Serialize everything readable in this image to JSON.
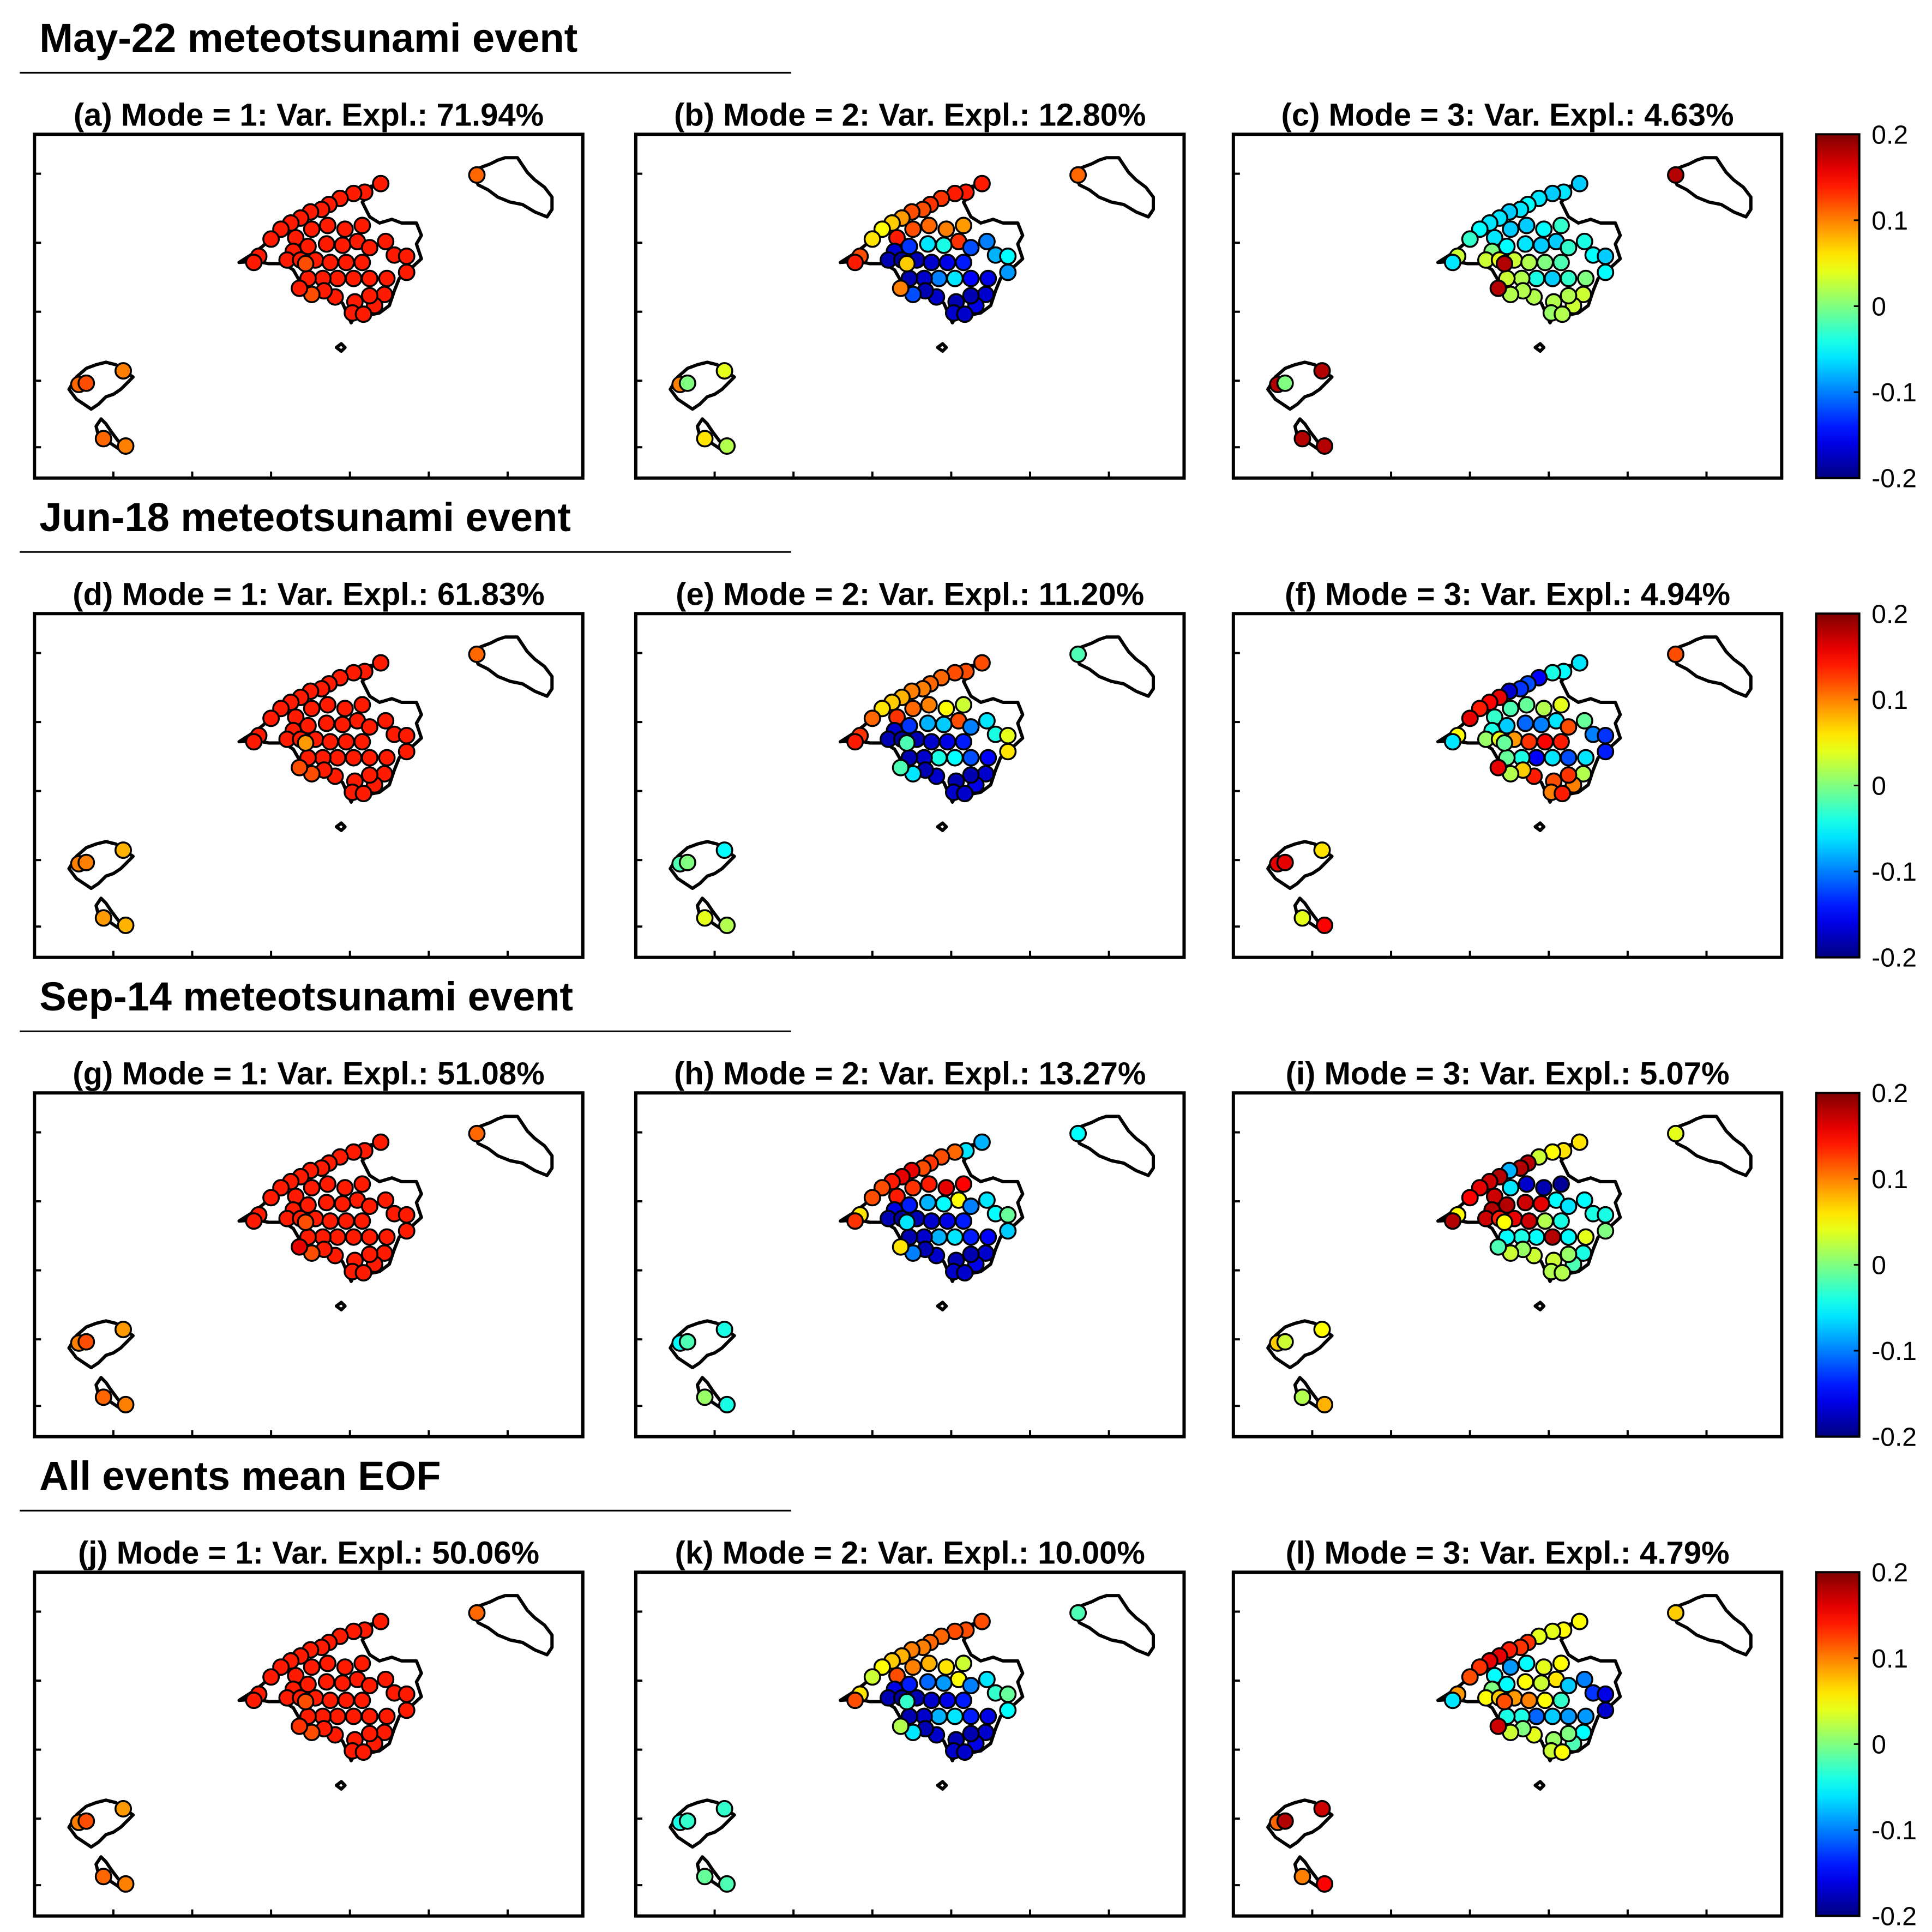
{
  "figure": {
    "colorbar": {
      "ticks": [
        "0.2",
        "0.1",
        "0",
        "-0.1",
        "-0.2"
      ],
      "range": [
        -0.2,
        0.2
      ],
      "colormap": "jet"
    },
    "groups": [
      {
        "title": "May-22 meteotsunami event",
        "panels": [
          {
            "title": "(a) Mode = 1: Var. Expl.: 71.94%"
          },
          {
            "title": "(b) Mode = 2: Var. Expl.: 12.80%"
          },
          {
            "title": "(c) Mode = 3: Var. Expl.: 4.63%"
          }
        ]
      },
      {
        "title": "Jun-18 meteotsunami event",
        "panels": [
          {
            "title": "(d) Mode = 1: Var. Expl.: 61.83%"
          },
          {
            "title": "(e) Mode = 2: Var. Expl.: 11.20%"
          },
          {
            "title": "(f) Mode = 3: Var. Expl.: 4.94%"
          }
        ]
      },
      {
        "title": "Sep-14 meteotsunami event",
        "panels": [
          {
            "title": "(g) Mode = 1: Var. Expl.: 51.08%"
          },
          {
            "title": "(h) Mode = 2: Var. Expl.: 13.27%"
          },
          {
            "title": "(i) Mode = 3: Var. Expl.: 5.07%"
          }
        ]
      },
      {
        "title": "All events mean EOF",
        "panels": [
          {
            "title": "(j) Mode = 1: Var. Expl.: 50.06%"
          },
          {
            "title": "(k) Mode = 2: Var. Expl.: 10.00%"
          },
          {
            "title": "(l) Mode = 3: Var. Expl.: 4.79%"
          }
        ]
      }
    ]
  },
  "chart_data": {
    "type": "scatter",
    "description_units": "station EOF amplitude",
    "colorbar_range": [
      -0.2,
      0.2
    ],
    "stations": [
      [
        0.6,
        0.15
      ],
      [
        1.0,
        0.12
      ],
      [
        1.4,
        0.2
      ],
      [
        2.0,
        0.25
      ],
      [
        2.8,
        0.15
      ],
      [
        2.3,
        0.55
      ],
      [
        0.8,
        0.65
      ],
      [
        0.3,
        1.0
      ],
      [
        0.6,
        1.3
      ],
      [
        0.35,
        1.65
      ],
      [
        0.1,
        1.95
      ],
      [
        0.0,
        2.3
      ],
      [
        1.3,
        0.9
      ],
      [
        1.8,
        1.25
      ],
      [
        2.4,
        1.0
      ],
      [
        3.0,
        1.1
      ],
      [
        3.5,
        1.45
      ],
      [
        4.0,
        1.65
      ],
      [
        3.4,
        0.7
      ],
      [
        4.9,
        0.7
      ],
      [
        5.1,
        0.95
      ],
      [
        5.8,
        1.55
      ],
      [
        5.6,
        2.1
      ],
      [
        5.3,
        2.75
      ],
      [
        4.8,
        3.25
      ],
      [
        4.2,
        3.2
      ],
      [
        3.7,
        3.05
      ],
      [
        3.2,
        2.95
      ],
      [
        2.6,
        2.7
      ],
      [
        2.1,
        2.3
      ],
      [
        1.6,
        2.05
      ],
      [
        1.4,
        1.55
      ],
      [
        2.6,
        1.9
      ],
      [
        3.3,
        2.25
      ],
      [
        4.4,
        2.6
      ],
      [
        5.3,
        1.75
      ],
      [
        4.3,
        1.3
      ],
      [
        3.9,
        2.05
      ],
      [
        6.3,
        2.3
      ],
      [
        6.6,
        2.8
      ],
      [
        6.2,
        3.15
      ],
      [
        5.9,
        3.5
      ],
      [
        6.1,
        4.0
      ],
      [
        6.5,
        4.6
      ],
      [
        5.7,
        4.4
      ],
      [
        5.2,
        5.0
      ],
      [
        5.5,
        5.5
      ],
      [
        6.6,
        5.0
      ],
      [
        0.0,
        0.0
      ],
      [
        3.0,
        1.2
      ],
      [
        3.0,
        0.3
      ],
      [
        0.5,
        0.8
      ],
      [
        0.0,
        1.1
      ],
      [
        1.7,
        0.0
      ],
      [
        0.0,
        1.4
      ],
      [
        0.0,
        0.0
      ],
      [
        1.4,
        0.6
      ]
    ],
    "panels": [
      {
        "id": "a",
        "values": [
          0.14,
          0.14,
          0.14,
          0.14,
          0.14,
          0.14,
          0.14,
          0.14,
          0.14,
          0.14,
          0.14,
          0.14,
          0.14,
          0.14,
          0.14,
          0.14,
          0.14,
          0.14,
          0.14,
          0.14,
          0.14,
          0.14,
          0.14,
          0.14,
          0.14,
          0.14,
          0.14,
          0.14,
          0.14,
          0.14,
          0.14,
          0.14,
          0.14,
          0.14,
          0.14,
          0.14,
          0.14,
          0.14,
          0.14,
          0.14,
          0.14,
          0.14,
          0.14,
          0.14,
          0.14,
          0.14,
          0.14,
          0.14,
          0.12,
          0.14,
          0.12,
          0.11,
          0.11,
          0.1,
          0.11,
          0.1,
          0.12
        ]
      },
      {
        "id": "b",
        "values": [
          0.14,
          0.14,
          0.14,
          0.13,
          0.13,
          0.12,
          0.12,
          0.09,
          0.07,
          0.05,
          0.06,
          0.12,
          0.14,
          0.14,
          0.12,
          0.11,
          0.1,
          0.09,
          0.13,
          -0.04,
          -0.06,
          -0.13,
          -0.17,
          -0.18,
          -0.19,
          -0.18,
          -0.17,
          -0.16,
          -0.14,
          -0.12,
          -0.1,
          -0.08,
          -0.05,
          -0.09,
          -0.16,
          -0.15,
          -0.06,
          -0.1,
          -0.17,
          -0.18,
          -0.17,
          -0.16,
          -0.18,
          -0.18,
          -0.17,
          -0.17,
          -0.17,
          -0.18,
          -0.12,
          0.1,
          0.07,
          0.11,
          0.1,
          0.04,
          0.06,
          0.02
        ]
      },
      {
        "id": "c",
        "values": [
          -0.07,
          -0.06,
          -0.07,
          -0.06,
          -0.05,
          -0.06,
          -0.07,
          -0.06,
          -0.06,
          -0.05,
          -0.03,
          0.03,
          -0.06,
          -0.06,
          -0.07,
          -0.07,
          -0.05,
          -0.03,
          -0.07,
          -0.07,
          -0.06,
          -0.05,
          0.0,
          0.03,
          0.04,
          0.03,
          0.02,
          0.0,
          -0.02,
          -0.03,
          -0.04,
          -0.05,
          -0.07,
          -0.05,
          0.0,
          -0.03,
          -0.07,
          -0.04,
          0.02,
          0.03,
          0.03,
          0.03,
          0.02,
          0.02,
          0.01,
          0.02,
          0.02,
          0.02,
          0.02,
          0.18,
          0.18,
          0.18,
          0.18,
          0.18,
          0.18,
          0.18
        ]
      },
      {
        "id": "d",
        "values": [
          0.14,
          0.14,
          0.14,
          0.14,
          0.14,
          0.14,
          0.14,
          0.14,
          0.14,
          0.14,
          0.14,
          0.14,
          0.14,
          0.14,
          0.14,
          0.14,
          0.14,
          0.14,
          0.14,
          0.14,
          0.14,
          0.14,
          0.14,
          0.14,
          0.14,
          0.14,
          0.14,
          0.14,
          0.14,
          0.14,
          0.14,
          0.14,
          0.14,
          0.14,
          0.14,
          0.14,
          0.14,
          0.14,
          0.14,
          0.14,
          0.14,
          0.14,
          0.14,
          0.14,
          0.14,
          0.14,
          0.14,
          0.14,
          0.12,
          0.12,
          0.09,
          0.11,
          0.1,
          0.08,
          0.09,
          0.08,
          0.1
        ]
      },
      {
        "id": "e",
        "values": [
          0.12,
          0.12,
          0.12,
          0.11,
          0.11,
          0.1,
          0.1,
          0.08,
          0.07,
          0.06,
          0.11,
          0.13,
          0.14,
          0.13,
          0.11,
          0.1,
          0.05,
          0.03,
          0.12,
          -0.07,
          -0.08,
          -0.13,
          -0.17,
          -0.18,
          -0.19,
          -0.18,
          -0.17,
          -0.16,
          -0.14,
          -0.1,
          -0.06,
          -0.04,
          0.04,
          0.06,
          -0.15,
          -0.12,
          -0.05,
          -0.04,
          -0.17,
          -0.18,
          -0.17,
          -0.16,
          -0.18,
          -0.18,
          -0.17,
          -0.17,
          -0.17,
          -0.18,
          -0.06,
          -0.02,
          -0.02,
          -0.02,
          -0.02,
          -0.05,
          0.04,
          0.02
        ]
      },
      {
        "id": "f",
        "values": [
          -0.06,
          -0.05,
          -0.04,
          -0.15,
          -0.12,
          -0.13,
          -0.17,
          0.16,
          0.15,
          0.14,
          0.16,
          0.05,
          -0.06,
          -0.03,
          -0.02,
          -0.01,
          0.02,
          0.04,
          -0.06,
          -0.1,
          -0.11,
          -0.07,
          -0.04,
          0.01,
          0.04,
          0.09,
          0.13,
          0.15,
          0.14,
          0.12,
          -0.01,
          -0.1,
          -0.13,
          -0.14,
          -0.06,
          -0.12,
          -0.06,
          -0.15,
          -0.04,
          -0.01,
          0.02,
          0.1,
          0.13,
          0.12,
          0.1,
          0.14,
          0.14,
          0.07,
          0.02,
          0.16,
          -0.01,
          0.12,
          0.16,
          0.06,
          0.04,
          0.15,
          0.16
        ]
      },
      {
        "id": "g",
        "values": [
          0.14,
          0.14,
          0.14,
          0.14,
          0.14,
          0.14,
          0.14,
          0.14,
          0.14,
          0.14,
          0.14,
          0.14,
          0.14,
          0.14,
          0.14,
          0.14,
          0.14,
          0.14,
          0.14,
          0.14,
          0.14,
          0.14,
          0.14,
          0.14,
          0.14,
          0.14,
          0.14,
          0.14,
          0.14,
          0.14,
          0.14,
          0.14,
          0.14,
          0.14,
          0.14,
          0.14,
          0.14,
          0.14,
          0.14,
          0.14,
          0.14,
          0.14,
          0.14,
          0.14,
          0.14,
          0.14,
          0.14,
          0.14,
          0.12,
          0.16,
          0.12,
          0.11,
          0.1,
          0.09,
          0.11,
          0.1,
          0.12
        ]
      },
      {
        "id": "h",
        "values": [
          -0.08,
          -0.06,
          0.11,
          0.12,
          0.13,
          0.12,
          0.16,
          0.16,
          0.14,
          0.12,
          0.12,
          0.06,
          0.13,
          0.14,
          0.13,
          0.14,
          0.16,
          0.15,
          0.05,
          -0.05,
          -0.08,
          -0.14,
          -0.16,
          -0.18,
          -0.19,
          -0.18,
          -0.17,
          -0.16,
          -0.14,
          -0.1,
          -0.06,
          -0.05,
          -0.01,
          -0.07,
          -0.15,
          -0.14,
          -0.06,
          -0.08,
          -0.17,
          -0.18,
          -0.17,
          -0.16,
          -0.18,
          -0.18,
          -0.17,
          -0.17,
          -0.17,
          -0.18,
          -0.1,
          0.06,
          -0.06,
          -0.05,
          -0.05,
          -0.04,
          0.01,
          -0.04,
          -0.02
        ]
      },
      {
        "id": "i",
        "values": [
          0.06,
          0.06,
          0.05,
          0.03,
          0.18,
          0.18,
          -0.08,
          0.18,
          0.17,
          0.16,
          0.15,
          0.05,
          0.18,
          0.17,
          -0.06,
          -0.17,
          -0.18,
          -0.19,
          -0.05,
          0.16,
          0.17,
          0.18,
          0.18,
          0.17,
          0.14,
          0.16,
          0.17,
          0.02,
          -0.04,
          -0.06,
          -0.05,
          -0.04,
          -0.04,
          0.0,
          0.04,
          -0.05,
          0.18,
          -0.05,
          -0.04,
          -0.05,
          -0.04,
          -0.02,
          0.01,
          0.03,
          0.02,
          0.02,
          0.03,
          0.01,
          0.03,
          -0.02,
          0.05,
          0.04,
          0.07,
          0.05,
          0.02,
          0.08,
          0.03
        ]
      },
      {
        "id": "j",
        "values": [
          0.14,
          0.14,
          0.14,
          0.14,
          0.14,
          0.14,
          0.14,
          0.14,
          0.14,
          0.14,
          0.14,
          0.14,
          0.14,
          0.14,
          0.14,
          0.14,
          0.14,
          0.14,
          0.14,
          0.14,
          0.14,
          0.14,
          0.14,
          0.14,
          0.14,
          0.14,
          0.14,
          0.14,
          0.14,
          0.14,
          0.14,
          0.14,
          0.14,
          0.14,
          0.14,
          0.14,
          0.14,
          0.14,
          0.14,
          0.14,
          0.14,
          0.14,
          0.14,
          0.14,
          0.14,
          0.14,
          0.14,
          0.14,
          0.12,
          0.13,
          0.12,
          0.11,
          0.1,
          0.09,
          0.11,
          0.1,
          0.12
        ]
      },
      {
        "id": "k",
        "values": [
          0.12,
          0.12,
          0.12,
          0.11,
          0.11,
          0.1,
          0.1,
          0.08,
          0.07,
          0.05,
          0.03,
          0.06,
          0.12,
          0.12,
          0.1,
          0.08,
          0.06,
          0.03,
          0.05,
          -0.09,
          -0.11,
          -0.14,
          -0.16,
          -0.18,
          -0.19,
          -0.18,
          -0.17,
          -0.16,
          -0.14,
          -0.1,
          -0.06,
          -0.03,
          -0.01,
          -0.05,
          -0.16,
          -0.14,
          -0.06,
          -0.08,
          -0.17,
          -0.18,
          -0.17,
          -0.16,
          -0.18,
          -0.18,
          -0.17,
          -0.17,
          -0.17,
          -0.18,
          -0.06,
          0.02,
          -0.03,
          -0.02,
          -0.04,
          -0.03,
          -0.01,
          -0.02,
          -0.03
        ]
      },
      {
        "id": "l",
        "values": [
          0.05,
          0.05,
          0.04,
          0.04,
          0.13,
          0.13,
          0.14,
          0.16,
          0.16,
          0.13,
          0.12,
          0.09,
          -0.06,
          -0.05,
          -0.09,
          -0.05,
          0.04,
          0.05,
          0.06,
          0.03,
          0.05,
          -0.05,
          0.0,
          0.05,
          0.07,
          0.09,
          0.1,
          0.05,
          -0.03,
          -0.07,
          -0.1,
          -0.13,
          -0.16,
          -0.17,
          -0.09,
          -0.09,
          -0.07,
          -0.11,
          -0.04,
          -0.04,
          -0.05,
          -0.02,
          0.0,
          0.01,
          0.03,
          0.05,
          0.04,
          0.0,
          0.03,
          0.17,
          0.12,
          0.07,
          0.11,
          0.17,
          0.1,
          0.15,
          0.18
        ]
      }
    ]
  }
}
